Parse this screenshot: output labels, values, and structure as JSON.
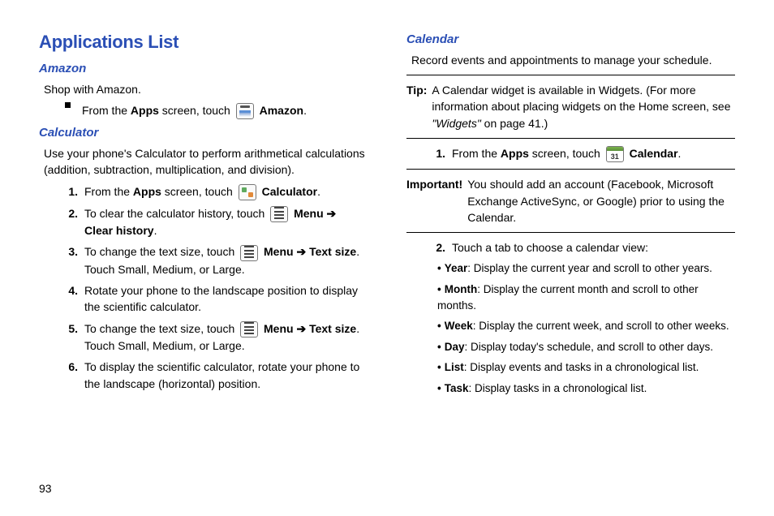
{
  "page": {
    "number": "93"
  },
  "left": {
    "title": "Applications List",
    "amazon": {
      "heading": "Amazon",
      "intro": "Shop with Amazon.",
      "step_prefix": "From the ",
      "apps_bold": "Apps",
      "step_mid": " screen, touch ",
      "app_bold": "Amazon",
      "period": "."
    },
    "calculator": {
      "heading": "Calculator",
      "intro": "Use your phone's Calculator to perform arithmetical calculations (addition, subtraction, multiplication, and division).",
      "s1_a": "From the ",
      "s1_b": "Apps",
      "s1_c": " screen, touch ",
      "s1_d": "Calculator",
      "s1_e": ".",
      "s2_a": "To clear the calculator history, touch ",
      "s2_b": "Menu",
      "s2_arrow": " ➔ ",
      "s2_c": "Clear history",
      "s2_d": ".",
      "s3_a": "To change the text size, touch ",
      "s3_b": "Menu",
      "s3_arrow": " ➔ ",
      "s3_c": "Text size",
      "s3_d": ". Touch Small, Medium, or Large.",
      "s4": "Rotate your phone to the landscape position to display the scientific calculator.",
      "s5_a": "To change the text size, touch ",
      "s5_b": "Menu",
      "s5_arrow": " ➔ ",
      "s5_c": "Text size",
      "s5_d": ". Touch Small, Medium, or Large.",
      "s6": "To display the scientific calculator, rotate your phone to the landscape (horizontal) position.",
      "n1": "1.",
      "n2": "2.",
      "n3": "3.",
      "n4": "4.",
      "n5": "5.",
      "n6": "6."
    }
  },
  "right": {
    "calendar": {
      "heading": "Calendar",
      "intro": "Record events and appointments to manage your schedule.",
      "tip_label": "Tip:",
      "tip_text_a": " A Calendar widget is available in Widgets. (For more information about placing widgets on the Home screen, see ",
      "tip_ref": "\"Widgets\"",
      "tip_text_b": " on page 41.)",
      "s1_n": "1.",
      "s1_a": "From the ",
      "s1_b": "Apps",
      "s1_c": " screen, touch ",
      "s1_d": "Calendar",
      "s1_e": ".",
      "imp_label": "Important!",
      "imp_text": " You should add an account (Facebook, Microsoft Exchange ActiveSync, or Google) prior to using the Calendar.",
      "s2_n": "2.",
      "s2_text": "Touch a tab to choose a calendar view:",
      "views": {
        "year_b": "Year",
        "year_t": ": Display the current year and scroll to other years.",
        "month_b": "Month",
        "month_t": ": Display the current month and scroll to other months.",
        "week_b": "Week",
        "week_t": ": Display the current week, and scroll to other weeks.",
        "day_b": "Day",
        "day_t": ": Display today's schedule, and scroll to other days.",
        "list_b": "List",
        "list_t": ": Display events and tasks in a chronological list.",
        "task_b": "Task",
        "task_t": ": Display tasks in a chronological list."
      }
    }
  }
}
